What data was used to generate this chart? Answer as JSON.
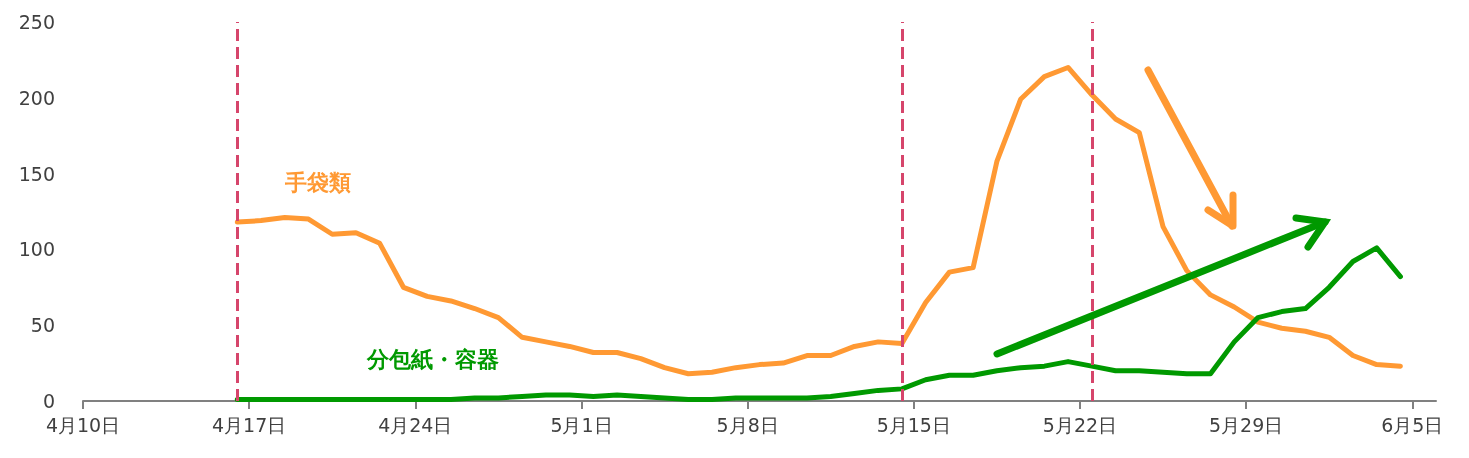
{
  "chart_data": {
    "type": "line",
    "x": [
      "--04-16T12:00",
      "--04-17T12:00",
      "--04-18T12:00",
      "--04-19T12:00",
      "--04-20T12:00",
      "--04-21T12:00",
      "--04-22T12:00",
      "--04-23T12:00",
      "--04-24T12:00",
      "--04-25T12:00",
      "--04-26T12:00",
      "--04-27T12:00",
      "--04-28T12:00",
      "--04-29T12:00",
      "--04-30T12:00",
      "--05-01T12:00",
      "--05-02T12:00",
      "--05-03T12:00",
      "--05-04T12:00",
      "--05-05T12:00",
      "--05-06T12:00",
      "--05-07T12:00",
      "--05-08T12:00",
      "--05-09T12:00",
      "--05-10T12:00",
      "--05-11T12:00",
      "--05-12T12:00",
      "--05-13T12:00",
      "--05-14T12:00",
      "--05-15T12:00",
      "--05-16T12:00",
      "--05-17T12:00",
      "--05-18T12:00",
      "--05-19T12:00",
      "--05-20T12:00",
      "--05-21T12:00",
      "--05-22T12:00",
      "--05-23T12:00",
      "--05-24T12:00",
      "--05-25T12:00",
      "--05-26T12:00",
      "--05-27T12:00",
      "--05-28T12:00",
      "--05-29T12:00",
      "--05-30T12:00",
      "--05-31T12:00",
      "--06-01T12:00",
      "--06-02T12:00",
      "--06-03T12:00",
      "--06-04T12:00"
    ],
    "series": [
      {
        "name": "手袋類",
        "color": "#ff9933",
        "values": [
          118,
          119,
          121,
          120,
          110,
          111,
          104,
          75,
          69,
          66,
          61,
          55,
          42,
          39,
          36,
          32,
          32,
          28,
          22,
          18,
          19,
          22,
          24,
          25,
          30,
          30,
          36,
          39,
          38,
          65,
          85,
          88,
          158,
          199,
          214,
          220,
          202,
          186,
          177,
          115,
          86,
          70,
          62,
          52,
          48,
          46,
          42,
          30,
          24,
          23
        ]
      },
      {
        "name": "分包紙・容器",
        "color": "#009900",
        "values": [
          1,
          1,
          1,
          1,
          1,
          1,
          1,
          1,
          1,
          1,
          2,
          2,
          3,
          4,
          4,
          3,
          4,
          3,
          2,
          1,
          1,
          2,
          2,
          2,
          2,
          3,
          5,
          7,
          8,
          14,
          17,
          17,
          20,
          22,
          23,
          26,
          23,
          20,
          20,
          19,
          18,
          18,
          39,
          55,
          59,
          61,
          75,
          92,
          101,
          82
        ]
      }
    ],
    "xlim": [
      "--04-10",
      "--06-06"
    ],
    "xticks": [
      {
        "value": "--04-10",
        "label": "4月10日"
      },
      {
        "value": "--04-17",
        "label": "4月17日"
      },
      {
        "value": "--04-24",
        "label": "4月24日"
      },
      {
        "value": "--05-01",
        "label": "5月1日"
      },
      {
        "value": "--05-08",
        "label": "5月8日"
      },
      {
        "value": "--05-15",
        "label": "5月15日"
      },
      {
        "value": "--05-22",
        "label": "5月22日"
      },
      {
        "value": "--05-29",
        "label": "5月29日"
      },
      {
        "value": "--06-05",
        "label": "6月5日"
      }
    ],
    "ylim": [
      0,
      250
    ],
    "yticks": [
      0,
      50,
      100,
      150,
      200,
      250
    ],
    "ref_lines": [
      {
        "axis": "x",
        "value": "--04-16T12:00",
        "color": "#d6456b",
        "line_style": "dashed"
      },
      {
        "axis": "x",
        "value": "--05-14T12:00",
        "color": "#d6456b",
        "line_style": "dashed"
      },
      {
        "axis": "x",
        "value": "--05-22T12:00",
        "color": "#d6456b",
        "line_style": "dashed"
      }
    ],
    "grid": false,
    "legend": false,
    "marker": "none",
    "line_style": "solid"
  }
}
